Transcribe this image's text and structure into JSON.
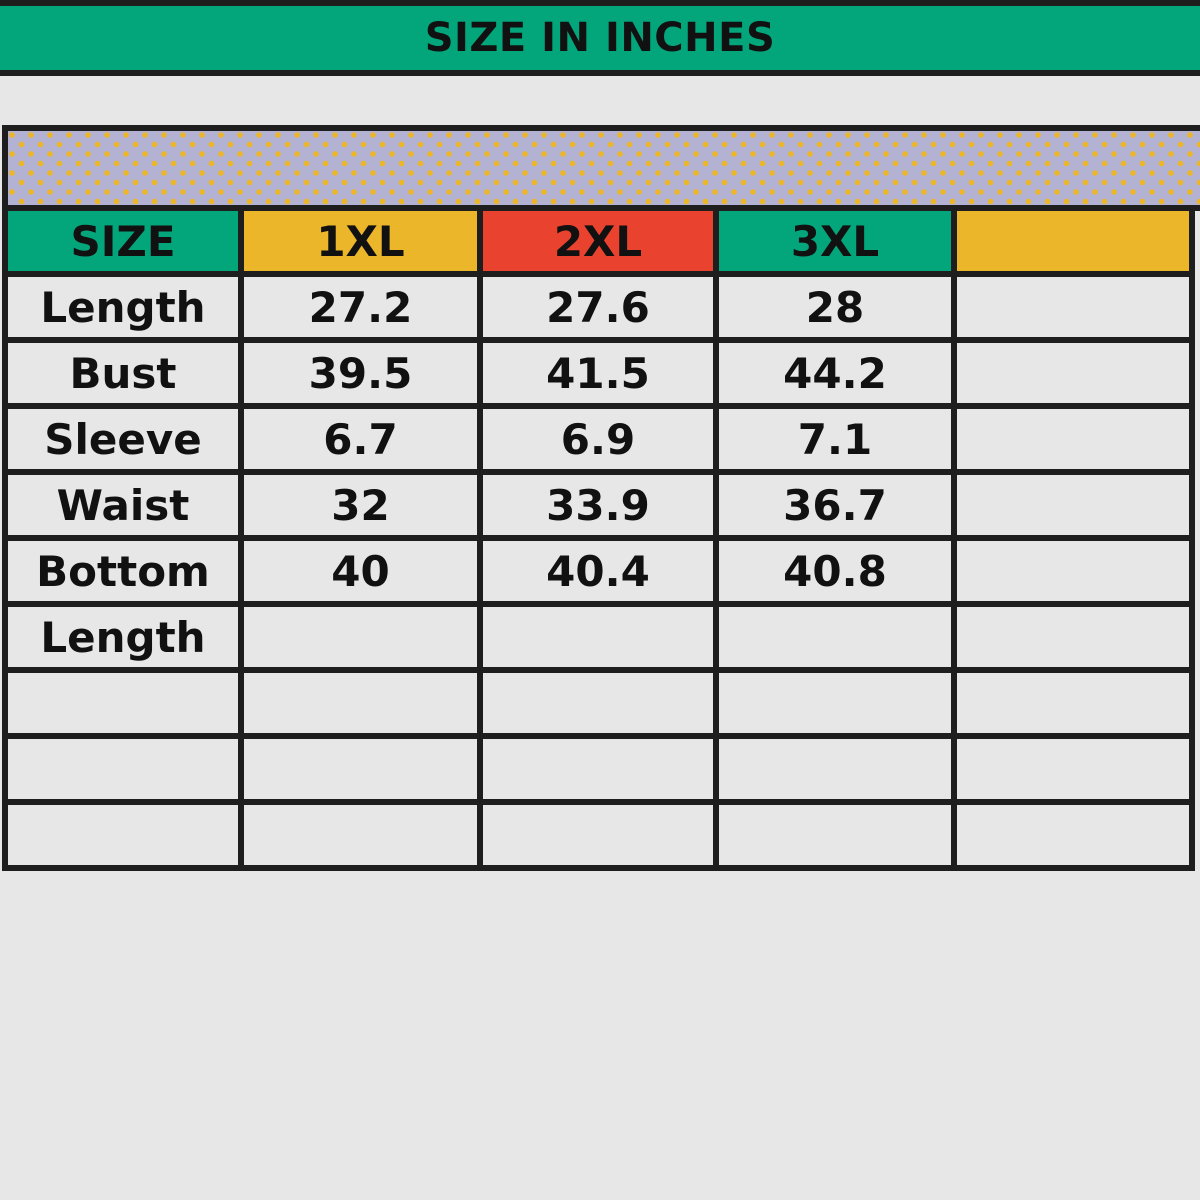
{
  "title": "SIZE IN INCHES",
  "colors": {
    "green": "#03a57b",
    "yellow": "#ecb62b",
    "red": "#e9432f",
    "pattern_bg": "#b3b2d2"
  },
  "header": [
    "SIZE",
    "1XL",
    "2XL",
    "3XL",
    ""
  ],
  "rows": [
    [
      "Length",
      "27.2",
      "27.6",
      "28",
      ""
    ],
    [
      "Bust",
      "39.5",
      "41.5",
      "44.2",
      ""
    ],
    [
      "Sleeve",
      "6.7",
      "6.9",
      "7.1",
      ""
    ],
    [
      "Waist",
      "32",
      "33.9",
      "36.7",
      ""
    ],
    [
      "Bottom",
      "40",
      "40.4",
      "40.8",
      ""
    ],
    [
      "Length",
      "",
      "",
      "",
      ""
    ],
    [
      "",
      "",
      "",
      "",
      ""
    ],
    [
      "",
      "",
      "",
      "",
      ""
    ],
    [
      "",
      "",
      "",
      "",
      ""
    ]
  ]
}
